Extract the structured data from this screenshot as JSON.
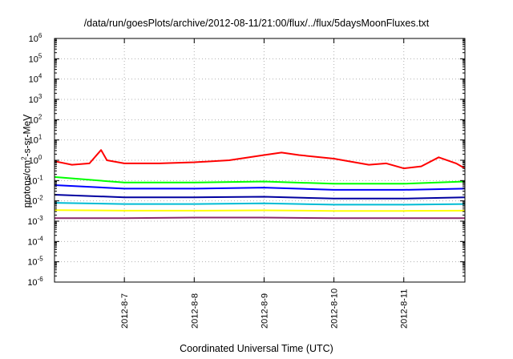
{
  "chart_data": {
    "type": "line",
    "title": "/data/run/goesPlots/archive/2012-08-11/21:00/flux/../flux/5daysMoonFluxes.txt",
    "xlabel": "Coordinated Universal Time (UTC)",
    "ylabel": {
      "prefix": "protons/cm",
      "sup": "2",
      "suffix": "-s-sr-MeV"
    },
    "x_range": [
      "2012-08-06T00:00",
      "2012-08-11T21:00"
    ],
    "x_ticks": [
      "2012-8-7",
      "2012-8-8",
      "2012-8-9",
      "2012-8-10",
      "2012-8-11"
    ],
    "x_tick_dates": [
      "2012-08-07T00:00",
      "2012-08-08T00:00",
      "2012-08-09T00:00",
      "2012-08-10T00:00",
      "2012-08-11T00:00"
    ],
    "y_scale": "log",
    "y_exponents": [
      -6,
      -5,
      -4,
      -3,
      -2,
      -1,
      0,
      1,
      2,
      3,
      4,
      5,
      6
    ],
    "ylim": [
      1e-06,
      1000000.0
    ],
    "grid": true,
    "legend": "none",
    "series": [
      {
        "color": "#ff0000",
        "points": [
          [
            "2012-08-06T00:00",
            0.9
          ],
          [
            "2012-08-06T06:00",
            0.6
          ],
          [
            "2012-08-06T12:00",
            0.7
          ],
          [
            "2012-08-06T16:00",
            3.2
          ],
          [
            "2012-08-06T18:00",
            1.0
          ],
          [
            "2012-08-07T00:00",
            0.7
          ],
          [
            "2012-08-07T12:00",
            0.7
          ],
          [
            "2012-08-08T00:00",
            0.8
          ],
          [
            "2012-08-08T12:00",
            1.0
          ],
          [
            "2012-08-09T00:00",
            1.8
          ],
          [
            "2012-08-09T06:00",
            2.4
          ],
          [
            "2012-08-09T12:00",
            1.8
          ],
          [
            "2012-08-10T00:00",
            1.2
          ],
          [
            "2012-08-10T12:00",
            0.6
          ],
          [
            "2012-08-10T18:00",
            0.7
          ],
          [
            "2012-08-11T00:00",
            0.4
          ],
          [
            "2012-08-11T06:00",
            0.5
          ],
          [
            "2012-08-11T12:00",
            1.4
          ],
          [
            "2012-08-11T18:00",
            0.7
          ],
          [
            "2012-08-11T21:00",
            0.4
          ]
        ]
      },
      {
        "color": "#00ff00",
        "points": [
          [
            "2012-08-06T00:00",
            0.15
          ],
          [
            "2012-08-07T00:00",
            0.08
          ],
          [
            "2012-08-08T00:00",
            0.08
          ],
          [
            "2012-08-09T00:00",
            0.09
          ],
          [
            "2012-08-10T00:00",
            0.07
          ],
          [
            "2012-08-11T00:00",
            0.07
          ],
          [
            "2012-08-11T21:00",
            0.09
          ]
        ]
      },
      {
        "color": "#0000ff",
        "points": [
          [
            "2012-08-06T00:00",
            0.06
          ],
          [
            "2012-08-07T00:00",
            0.04
          ],
          [
            "2012-08-08T00:00",
            0.04
          ],
          [
            "2012-08-09T00:00",
            0.045
          ],
          [
            "2012-08-10T00:00",
            0.035
          ],
          [
            "2012-08-11T00:00",
            0.035
          ],
          [
            "2012-08-11T21:00",
            0.04
          ]
        ]
      },
      {
        "color": "#0000a0",
        "points": [
          [
            "2012-08-06T00:00",
            0.02
          ],
          [
            "2012-08-07T00:00",
            0.015
          ],
          [
            "2012-08-08T00:00",
            0.015
          ],
          [
            "2012-08-09T00:00",
            0.016
          ],
          [
            "2012-08-10T00:00",
            0.013
          ],
          [
            "2012-08-11T00:00",
            0.013
          ],
          [
            "2012-08-11T21:00",
            0.015
          ]
        ]
      },
      {
        "color": "#00bcd4",
        "points": [
          [
            "2012-08-06T00:00",
            0.008
          ],
          [
            "2012-08-07T00:00",
            0.007
          ],
          [
            "2012-08-08T00:00",
            0.007
          ],
          [
            "2012-08-09T00:00",
            0.0075
          ],
          [
            "2012-08-10T00:00",
            0.0065
          ],
          [
            "2012-08-11T00:00",
            0.0065
          ],
          [
            "2012-08-11T21:00",
            0.007
          ]
        ]
      },
      {
        "color": "#ffff00",
        "points": [
          [
            "2012-08-06T00:00",
            0.0035
          ],
          [
            "2012-08-07T00:00",
            0.0033
          ],
          [
            "2012-08-08T00:00",
            0.0033
          ],
          [
            "2012-08-09T00:00",
            0.0034
          ],
          [
            "2012-08-10T00:00",
            0.0032
          ],
          [
            "2012-08-11T00:00",
            0.0032
          ],
          [
            "2012-08-11T21:00",
            0.0033
          ]
        ]
      },
      {
        "color": "#8b2a6b",
        "points": [
          [
            "2012-08-06T00:00",
            0.0014
          ],
          [
            "2012-08-07T00:00",
            0.0014
          ],
          [
            "2012-08-08T00:00",
            0.0015
          ],
          [
            "2012-08-09T00:00",
            0.0015
          ],
          [
            "2012-08-10T00:00",
            0.0014
          ],
          [
            "2012-08-11T00:00",
            0.0014
          ],
          [
            "2012-08-11T21:00",
            0.0014
          ]
        ]
      }
    ]
  }
}
